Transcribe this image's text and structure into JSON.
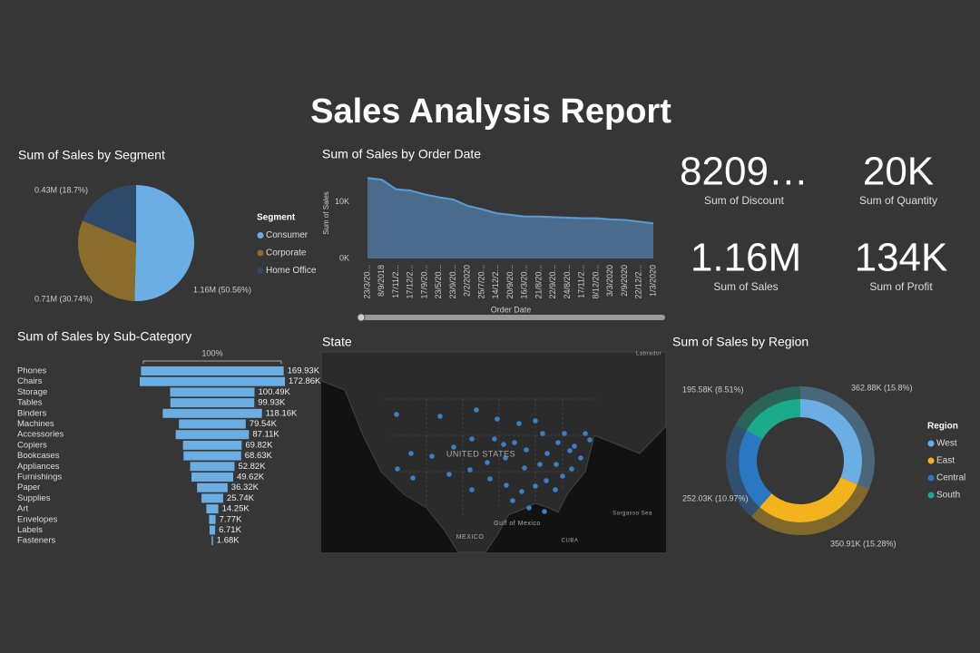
{
  "title": "Sales Analysis Report",
  "chart_data": [
    {
      "type": "pie",
      "title": "Sum of Sales by Segment",
      "legend_title": "Segment",
      "categories": [
        "Consumer",
        "Corporate",
        "Home Office"
      ],
      "values": [
        1.16,
        0.71,
        0.43
      ],
      "value_labels": [
        "1.16M (50.56%)",
        "0.71M (30.74%)",
        "0.43M (18.7%)"
      ],
      "colors": [
        "#6aaee3",
        "#8a6d2b",
        "#2e4a6b"
      ]
    },
    {
      "type": "area",
      "title": "Sum of Sales by Order Date",
      "x_label": "Order Date",
      "y_label": "Sum of Sales",
      "categories": [
        "23/3/20...",
        "8/9/2018",
        "17/11/2...",
        "17/12/2...",
        "17/9/20...",
        "23/5/20...",
        "23/9/20...",
        "2/2/2020",
        "25/7/20...",
        "14/12/2...",
        "20/9/20...",
        "16/3/20...",
        "21/8/20...",
        "22/9/20...",
        "24/8/20...",
        "17/11/2...",
        "8/12/20...",
        "3/3/2020",
        "2/9/2020",
        "22/12/2...",
        "1/3/2020"
      ],
      "values": [
        14200,
        13900,
        12200,
        12000,
        11300,
        10800,
        10400,
        9300,
        8700,
        8000,
        7700,
        7400,
        7400,
        7300,
        7200,
        7100,
        7100,
        6900,
        6800,
        6500,
        6200
      ],
      "color": "#5b9bd5",
      "fill": "#4a6b8c",
      "ylim": [
        0,
        16000
      ],
      "yticks": [
        {
          "value": 0,
          "label": "0K"
        },
        {
          "value": 10000,
          "label": "10K"
        }
      ]
    },
    {
      "type": "funnel",
      "title": "Sum of Sales by Sub-Category",
      "annotation": "100%",
      "categories": [
        "Phones",
        "Chairs",
        "Storage",
        "Tables",
        "Binders",
        "Machines",
        "Accessories",
        "Copiers",
        "Bookcases",
        "Appliances",
        "Furnishings",
        "Paper",
        "Supplies",
        "Art",
        "Envelopes",
        "Labels",
        "Fasteners"
      ],
      "values": [
        169930,
        172860,
        100490,
        99930,
        118160,
        79540,
        87110,
        69820,
        68630,
        52820,
        49620,
        36320,
        25740,
        14250,
        7770,
        6710,
        1680
      ],
      "value_labels": [
        "169.93K",
        "172.86K",
        "100.49K",
        "99.93K",
        "118.16K",
        "79.54K",
        "87.11K",
        "69.82K",
        "68.63K",
        "52.82K",
        "49.62K",
        "36.32K",
        "25.74K",
        "14.25K",
        "7.77K",
        "6.71K",
        "1.68K"
      ],
      "color": "#6aaee3"
    },
    {
      "type": "donut",
      "title": "Sum of Sales by Region",
      "legend_title": "Region",
      "categories": [
        "West",
        "East",
        "Central",
        "South"
      ],
      "values": [
        362880,
        350910,
        252030,
        195580
      ],
      "value_labels": [
        "362.88K (15.8%)",
        "350.91K (15.28%)",
        "252.03K (10.97%)",
        "195.58K (8.51%)"
      ],
      "colors": [
        "#6aaee3",
        "#f2b31c",
        "#2a78c2",
        "#1aab8a"
      ]
    }
  ],
  "kpis": [
    {
      "value": "8209…",
      "label": "Sum of Discount"
    },
    {
      "value": "20K",
      "label": "Sum of Quantity"
    },
    {
      "value": "1.16M",
      "label": "Sum of Sales"
    },
    {
      "value": "134K",
      "label": "Sum of Profit"
    }
  ],
  "map": {
    "title": "State",
    "labels": [
      "UNITED STATES",
      "MEXICO",
      "Gulf of Mexico",
      "Sargasso Sea",
      "Labrador",
      "CUBA"
    ]
  }
}
